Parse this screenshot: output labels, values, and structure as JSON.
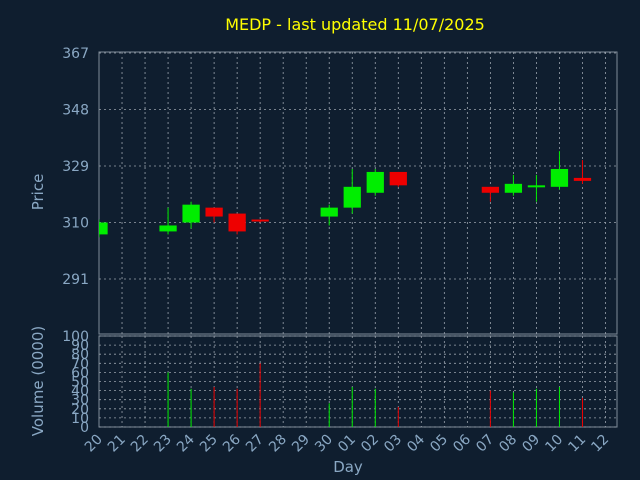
{
  "chart_data": {
    "type": "candlestick",
    "title": "MEDP - last updated 11/07/2025",
    "price_panel": {
      "ylabel": "Price",
      "ylim": [
        291,
        367
      ],
      "yticks": [
        "367",
        "348",
        "329",
        "310",
        "291"
      ],
      "grid": true
    },
    "volume_panel": {
      "ylabel": "Volume (0000)",
      "ylim": [
        0,
        100
      ],
      "yticks": [
        "100",
        "90",
        "80",
        "70",
        "60",
        "50",
        "40",
        "30",
        "20",
        "10",
        "0"
      ],
      "grid": true
    },
    "xlabel": "Day",
    "categories": [
      "20",
      "21",
      "22",
      "23",
      "24",
      "25",
      "26",
      "27",
      "28",
      "29",
      "30",
      "01",
      "02",
      "03",
      "04",
      "05",
      "06",
      "07",
      "08",
      "09",
      "10",
      "11",
      "12"
    ],
    "candles": [
      {
        "day": "20",
        "open": 306,
        "high": 311,
        "low": 305,
        "close": 310
      },
      {
        "day": "23",
        "open": 307,
        "high": 315,
        "low": 306,
        "close": 309
      },
      {
        "day": "24",
        "open": 310,
        "high": 317,
        "low": 308,
        "close": 316
      },
      {
        "day": "25",
        "open": 315,
        "high": 315,
        "low": 310,
        "close": 312
      },
      {
        "day": "26",
        "open": 313,
        "high": 313,
        "low": 306,
        "close": 307
      },
      {
        "day": "27",
        "open": 311,
        "high": 311,
        "low": 310,
        "close": 310.5
      },
      {
        "day": "30",
        "open": 312,
        "high": 316,
        "low": 309,
        "close": 315
      },
      {
        "day": "01",
        "open": 315,
        "high": 328,
        "low": 313,
        "close": 322
      },
      {
        "day": "02",
        "open": 320,
        "high": 328,
        "low": 319,
        "close": 327
      },
      {
        "day": "03",
        "open": 327,
        "high": 327,
        "low": 322,
        "close": 322.5
      },
      {
        "day": "07",
        "open": 322,
        "high": 322,
        "low": 317,
        "close": 320
      },
      {
        "day": "08",
        "open": 320,
        "high": 326,
        "low": 319,
        "close": 323
      },
      {
        "day": "09",
        "open": 322,
        "high": 326,
        "low": 317,
        "close": 322.5
      },
      {
        "day": "10",
        "open": 322,
        "high": 334,
        "low": 321,
        "close": 328
      },
      {
        "day": "11",
        "open": 325,
        "high": 331,
        "low": 323,
        "close": 324
      }
    ],
    "volume": [
      {
        "day": "23",
        "value": 60
      },
      {
        "day": "24",
        "value": 42
      },
      {
        "day": "25",
        "value": 44
      },
      {
        "day": "26",
        "value": 42
      },
      {
        "day": "27",
        "value": 70
      },
      {
        "day": "30",
        "value": 26
      },
      {
        "day": "01",
        "value": 44
      },
      {
        "day": "02",
        "value": 42
      },
      {
        "day": "03",
        "value": 22
      },
      {
        "day": "07",
        "value": 40
      },
      {
        "day": "08",
        "value": 38
      },
      {
        "day": "09",
        "value": 42
      },
      {
        "day": "10",
        "value": 44
      },
      {
        "day": "11",
        "value": 32
      }
    ],
    "colors": {
      "background": "#0f1e2f",
      "frame": "#7f8c99",
      "grid": "#9aa3ad",
      "axis_text": "#8aa8c4",
      "title": "#ffff00",
      "up": "#00ee00",
      "down": "#ee0000",
      "neutral": "#ffffff"
    }
  }
}
